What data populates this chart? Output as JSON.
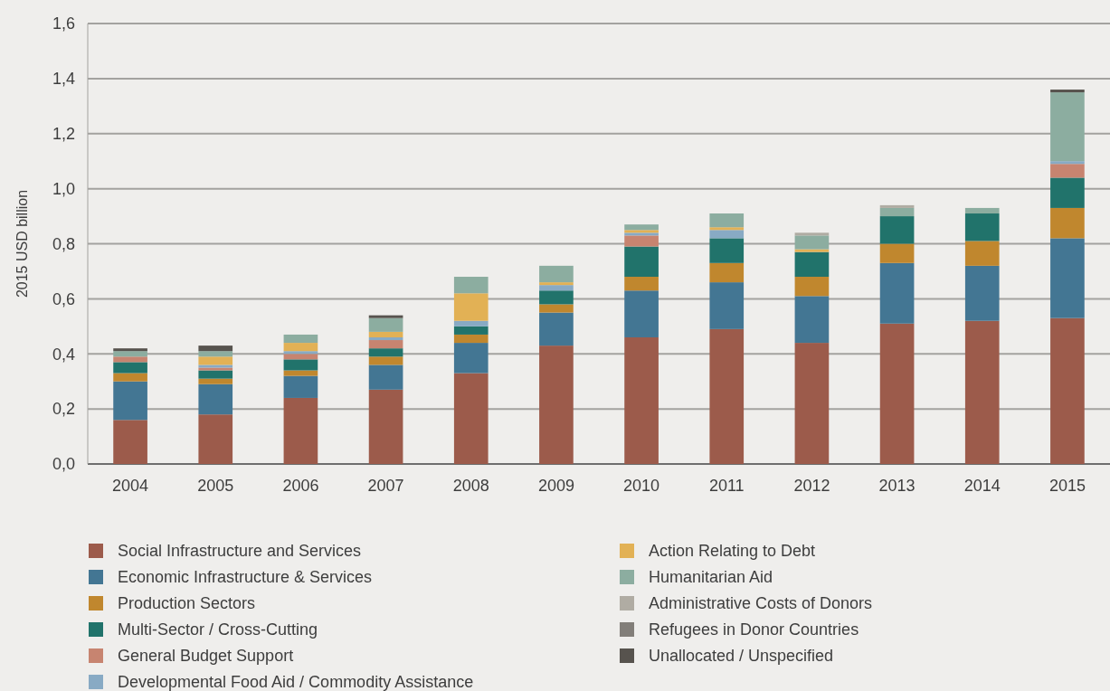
{
  "chart_data": {
    "type": "bar",
    "stacked": true,
    "ylabel": "2015 USD billion",
    "categories": [
      "2004",
      "2005",
      "2006",
      "2007",
      "2008",
      "2009",
      "2010",
      "2011",
      "2012",
      "2013",
      "2014",
      "2015"
    ],
    "ylim": [
      0,
      1.6
    ],
    "yticks": [
      {
        "value": 0,
        "label": "0,0"
      },
      {
        "value": 0.2,
        "label": "0,2"
      },
      {
        "value": 0.4,
        "label": "0,4"
      },
      {
        "value": 0.6,
        "label": "0,6"
      },
      {
        "value": 0.8,
        "label": "0,8"
      },
      {
        "value": 1.0,
        "label": "1,0"
      },
      {
        "value": 1.2,
        "label": "1,2"
      },
      {
        "value": 1.4,
        "label": "1,4"
      },
      {
        "value": 1.6,
        "label": "1,6"
      }
    ],
    "grid": "y",
    "legend": "bottom",
    "series": [
      {
        "name": "Social Infrastructure and Services",
        "color": "#9c5b4b",
        "values": [
          0.16,
          0.18,
          0.24,
          0.27,
          0.33,
          0.43,
          0.46,
          0.49,
          0.44,
          0.51,
          0.52,
          0.53
        ]
      },
      {
        "name": "Economic Infrastructure & Services",
        "color": "#437693",
        "values": [
          0.14,
          0.11,
          0.08,
          0.09,
          0.11,
          0.12,
          0.17,
          0.17,
          0.17,
          0.22,
          0.2,
          0.29
        ]
      },
      {
        "name": "Production Sectors",
        "color": "#c0872e",
        "values": [
          0.03,
          0.02,
          0.02,
          0.03,
          0.03,
          0.03,
          0.05,
          0.07,
          0.07,
          0.07,
          0.09,
          0.11
        ]
      },
      {
        "name": "Multi-Sector / Cross-Cutting",
        "color": "#21736b",
        "values": [
          0.04,
          0.03,
          0.04,
          0.03,
          0.03,
          0.05,
          0.11,
          0.09,
          0.09,
          0.1,
          0.1,
          0.11
        ]
      },
      {
        "name": "General Budget Support",
        "color": "#c78470",
        "values": [
          0.02,
          0.01,
          0.02,
          0.03,
          null,
          null,
          0.04,
          null,
          null,
          null,
          null,
          0.05
        ]
      },
      {
        "name": "Developmental Food Aid / Commodity Assistance",
        "color": "#88aac4",
        "values": [
          null,
          0.01,
          0.01,
          0.01,
          0.02,
          0.02,
          0.01,
          0.03,
          null,
          null,
          null,
          0.01
        ]
      },
      {
        "name": "Action Relating to Debt",
        "color": "#e2b155",
        "values": [
          null,
          0.03,
          0.03,
          0.02,
          0.1,
          0.01,
          0.01,
          0.01,
          0.01,
          null,
          null,
          null
        ]
      },
      {
        "name": "Humanitarian Aid",
        "color": "#8cada0",
        "values": [
          0.02,
          0.02,
          0.03,
          0.05,
          0.06,
          0.06,
          0.02,
          0.05,
          0.05,
          0.03,
          0.02,
          0.25
        ]
      },
      {
        "name": "Administrative Costs of Donors",
        "color": "#b0aca3",
        "values": [
          null,
          null,
          null,
          null,
          null,
          null,
          null,
          null,
          0.01,
          0.01,
          null,
          null
        ]
      },
      {
        "name": "Refugees in Donor Countries",
        "color": "#827e79",
        "values": [
          null,
          null,
          null,
          null,
          null,
          null,
          null,
          null,
          null,
          null,
          null,
          null
        ]
      },
      {
        "name": "Unallocated / Unspecified",
        "color": "#57534e",
        "values": [
          0.01,
          0.02,
          null,
          0.01,
          null,
          null,
          null,
          null,
          null,
          null,
          null,
          0.01
        ]
      }
    ]
  }
}
